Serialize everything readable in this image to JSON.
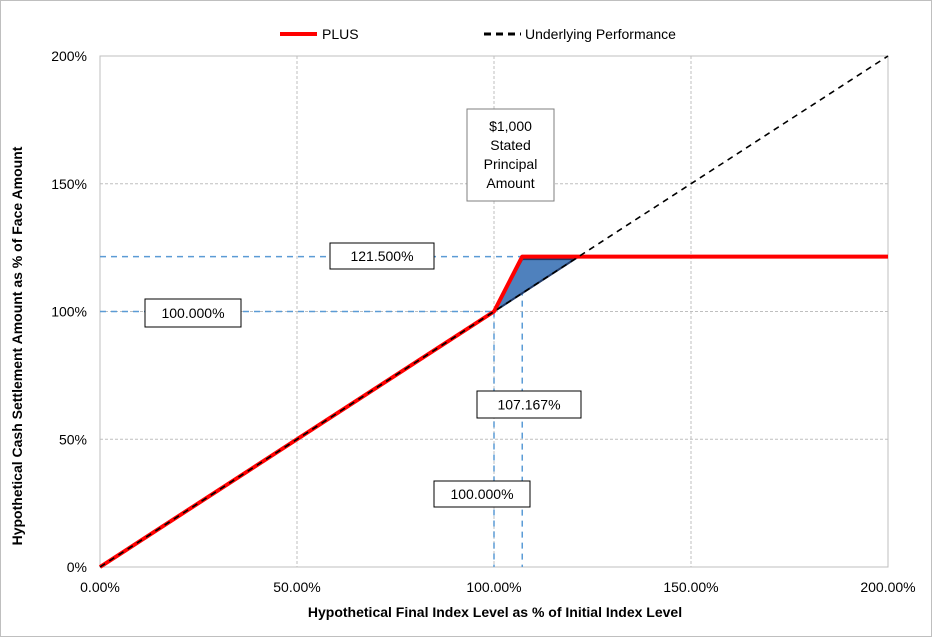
{
  "chart_data": {
    "type": "line",
    "title": "",
    "xlabel": "Hypothetical Final Index Level as % of Initial Index Level",
    "ylabel": "Hypothetical Cash Settlement Amount as % of Face Amount",
    "xlim": [
      0,
      200
    ],
    "ylim": [
      0,
      200
    ],
    "x_ticks": [
      "0.00%",
      "50.00%",
      "100.00%",
      "150.00%",
      "200.00%"
    ],
    "y_ticks": [
      "0%",
      "50%",
      "100%",
      "150%",
      "200%"
    ],
    "grid": true,
    "legend_position": "top",
    "series": [
      {
        "name": "PLUS",
        "color": "#ff0000",
        "style": "solid",
        "points": [
          [
            0,
            0
          ],
          [
            100,
            100
          ],
          [
            107.167,
            121.5
          ],
          [
            200,
            121.5
          ]
        ]
      },
      {
        "name": "Underlying Performance",
        "color": "#000000",
        "style": "dashed",
        "points": [
          [
            0,
            0
          ],
          [
            200,
            200
          ]
        ]
      }
    ],
    "shaded_region": {
      "color": "#4f81bd",
      "points": [
        [
          100,
          100
        ],
        [
          107.167,
          120.5
        ],
        [
          120.5,
          120.5
        ]
      ]
    },
    "reference_lines": [
      {
        "axis": "y",
        "value": 121.5,
        "label": "121.500%"
      },
      {
        "axis": "y",
        "value": 100,
        "label": "100.000%"
      },
      {
        "axis": "x",
        "value": 100,
        "label": "100.000%"
      },
      {
        "axis": "x",
        "value": 107.167,
        "label": "107.167%"
      }
    ],
    "annotations": [
      {
        "lines": [
          "$1,000",
          "Stated",
          "Principal",
          "Amount"
        ]
      }
    ]
  }
}
